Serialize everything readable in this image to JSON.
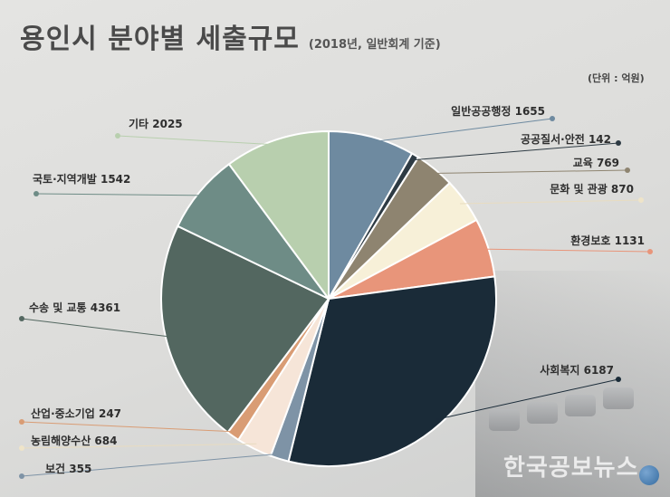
{
  "header": {
    "title": "용인시 분야별 세출규모",
    "subtitle": "(2018년, 일반회계 기준)",
    "unit": "(단위 : 억원)"
  },
  "watermark": {
    "text": "한국공보뉴스"
  },
  "chart_data": {
    "type": "pie",
    "title": "용인시 분야별 세출규모",
    "subtitle": "(2018년, 일반회계 기준)",
    "unit": "억원",
    "start": "12 o'clock",
    "direction": "clockwise",
    "slices": [
      {
        "name": "일반공공행정",
        "label": "일반공공행정 1655",
        "value": 1655,
        "color": "#6e8aa0"
      },
      {
        "name": "공공질서·안전",
        "label": "공공질서·안전 142",
        "value": 142,
        "color": "#2e3b44"
      },
      {
        "name": "교육",
        "label": "교육 769",
        "value": 769,
        "color": "#8e8470"
      },
      {
        "name": "문화 및 관광",
        "label": "문화 및 관광 870",
        "value": 870,
        "color": "#f7f0d8"
      },
      {
        "name": "환경보호",
        "label": "환경보호 1131",
        "value": 1131,
        "color": "#e8957a"
      },
      {
        "name": "사회복지",
        "label": "사회복지 6187",
        "value": 6187,
        "color": "#1a2b38"
      },
      {
        "name": "보건",
        "label": "보건 355",
        "value": 355,
        "color": "#7e93a6"
      },
      {
        "name": "농림해양수산",
        "label": "농림해양수산 684",
        "value": 684,
        "color": "#f6e5d8"
      },
      {
        "name": "산업·중소기업",
        "label": "산업·중소기업 247",
        "value": 247,
        "color": "#d99c74"
      },
      {
        "name": "수송 및 교통",
        "label": "수송 및 교통 4361",
        "value": 4361,
        "color": "#536760"
      },
      {
        "name": "국토·지역개발",
        "label": "국토·지역개발 1542",
        "value": 1542,
        "color": "#6e8c86"
      },
      {
        "name": "기타",
        "label": "기타 2025",
        "value": 2025,
        "color": "#b8cfae"
      }
    ]
  }
}
